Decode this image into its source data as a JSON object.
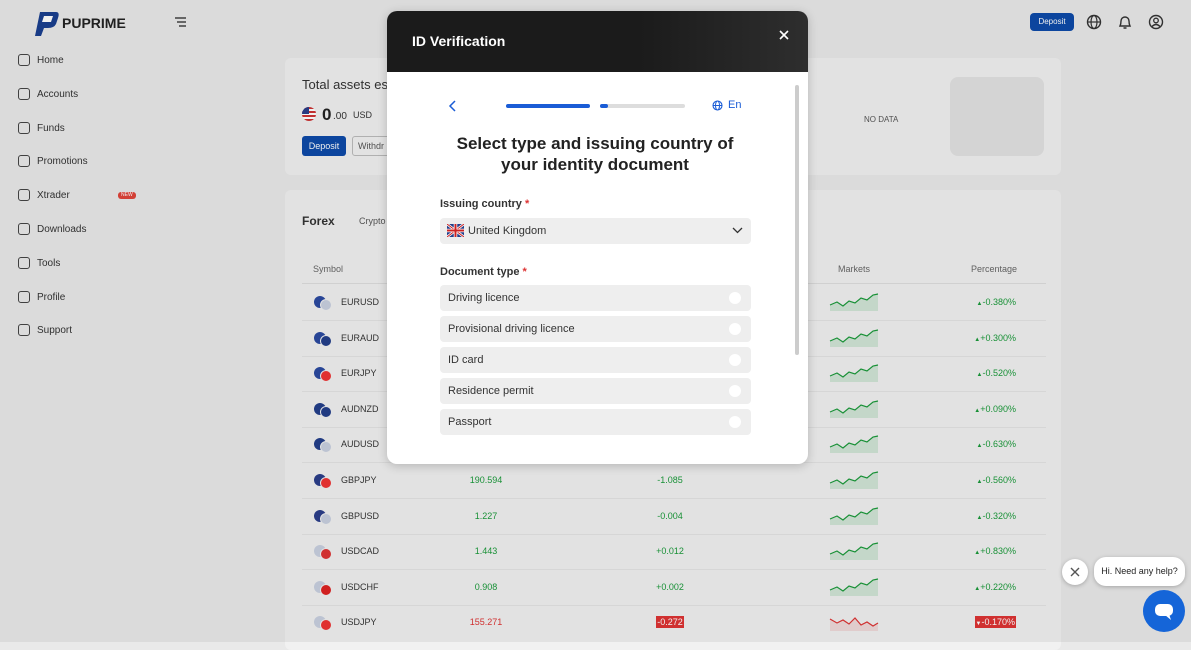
{
  "logo": "PUPRIME",
  "nav": [
    "Home",
    "Accounts",
    "Funds",
    "Promotions",
    "Xtrader",
    "Downloads",
    "Tools",
    "Profile",
    "Support"
  ],
  "nav_badge": "NEW",
  "topbar": {
    "deposit": "Deposit"
  },
  "assets": {
    "title": "Total assets esti",
    "amount": "0",
    "decimals": ".00",
    "currency": "USD",
    "deposit": "Deposit",
    "withdraw": "Withdr",
    "no_data": "NO DATA"
  },
  "markets": {
    "tabs": [
      "Forex",
      "Crypto"
    ],
    "columns": [
      "Symbol",
      "Markets",
      "Percentage"
    ],
    "rows": [
      {
        "symbol": "EURUSD",
        "percentage": "-0.380%"
      },
      {
        "symbol": "EURAUD",
        "percentage": "+0.300%"
      },
      {
        "symbol": "EURJPY",
        "percentage": "-0.520%"
      },
      {
        "symbol": "AUDNZD",
        "percentage": "+0.090%"
      },
      {
        "symbol": "AUDUSD",
        "percentage": "-0.630%"
      },
      {
        "symbol": "GBPJPY",
        "price": "190.594",
        "change": "-1.085",
        "percentage": "-0.560%"
      },
      {
        "symbol": "GBPUSD",
        "price": "1.227",
        "change": "-0.004",
        "percentage": "-0.320%"
      },
      {
        "symbol": "USDCAD",
        "price": "1.443",
        "change": "+0.012",
        "percentage": "+0.830%"
      },
      {
        "symbol": "USDCHF",
        "price": "0.908",
        "change": "+0.002",
        "percentage": "+0.220%"
      },
      {
        "symbol": "USDJPY",
        "price": "155.271",
        "change": "-0.272",
        "percentage": "-0.170%",
        "highlight": true
      }
    ]
  },
  "modal": {
    "title": "ID Verification",
    "language": "En",
    "heading": "Select type and issuing country of your identity document",
    "country_label": "Issuing country",
    "required": "*",
    "country": "United Kingdom",
    "document_label": "Document type",
    "documents": [
      "Driving licence",
      "Provisional driving licence",
      "ID card",
      "Residence permit",
      "Passport"
    ]
  },
  "chat": {
    "message": "Hi. Need any help?"
  }
}
